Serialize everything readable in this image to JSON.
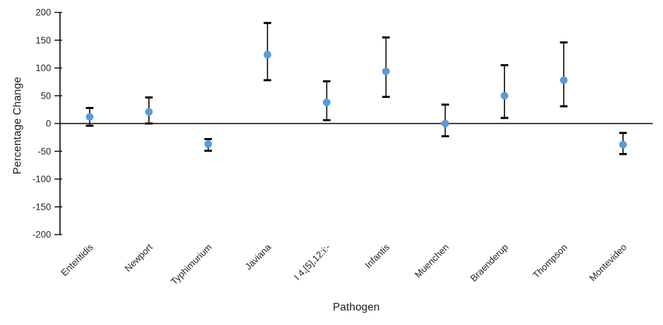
{
  "chart_data": {
    "type": "scatter",
    "title": "",
    "xlabel": "Pathogen",
    "ylabel": "Percentage Change",
    "ylim": [
      -200,
      200
    ],
    "yticks": [
      200,
      150,
      100,
      50,
      0,
      -50,
      -100,
      -150,
      -200
    ],
    "grid": false,
    "legend": false,
    "zero_baseline": true,
    "categories": [
      "Enteritidis",
      "Newport",
      "Typhimurium",
      "Javiana",
      "I 4,[5],12:i:-",
      "Infantis",
      "Muenchen",
      "Braenderup",
      "Thompson",
      "Montevideo"
    ],
    "series": [
      {
        "values": [
          12,
          21,
          -37,
          124,
          38,
          94,
          0,
          50,
          78,
          -38
        ],
        "error_high": [
          28,
          47,
          -28,
          181,
          76,
          155,
          34,
          105,
          146,
          -17
        ],
        "error_low": [
          -4,
          0,
          -49,
          78,
          6,
          48,
          -23,
          10,
          31,
          -55
        ]
      }
    ],
    "colors": {
      "marker": "#5B9BD5",
      "error_bar": "#000000",
      "axis": "#000000",
      "tick_text": "#262626",
      "background": "#ffffff"
    }
  }
}
